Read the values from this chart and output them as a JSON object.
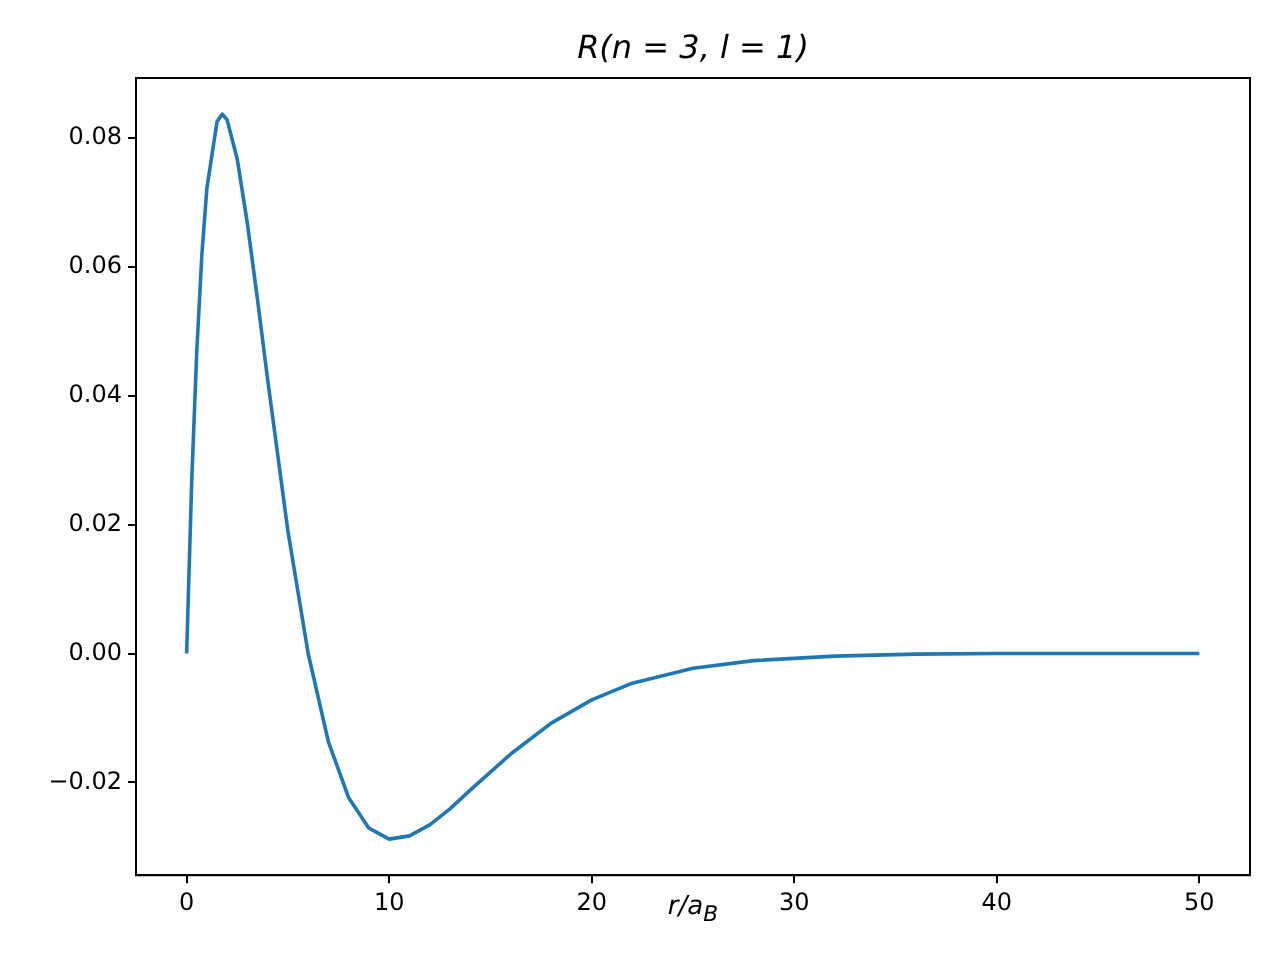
{
  "chart_data": {
    "type": "line",
    "title": "R(n = 3, l = 1)",
    "xlabel": "r/a$_{B}$",
    "x": [
      0,
      0.25,
      0.5,
      0.75,
      1,
      1.5,
      1.76,
      2,
      2.5,
      3,
      3.5,
      4,
      5,
      6,
      7,
      8,
      9,
      10,
      11,
      12,
      13,
      14,
      16,
      18,
      20,
      22,
      25,
      28,
      32,
      36,
      40,
      45,
      50
    ],
    "series": [
      {
        "color": "#1f77b4",
        "values": [
          0,
          0.0267,
          0.0469,
          0.0618,
          0.0722,
          0.0825,
          0.0837,
          0.0828,
          0.0767,
          0.0667,
          0.0549,
          0.0425,
          0.019,
          0,
          -0.0137,
          -0.0224,
          -0.0271,
          -0.0288,
          -0.0283,
          -0.0266,
          -0.0241,
          -0.0212,
          -0.0156,
          -0.0108,
          -0.0072,
          -0.0046,
          -0.0023,
          -0.0011,
          -0.0004,
          -0.0001,
          0,
          0,
          0
        ]
      }
    ],
    "xlim": [
      -2.5,
      52.5
    ],
    "xticks": [
      0,
      10,
      20,
      30,
      40,
      50
    ],
    "ylim": [
      -0.0344,
      0.0893
    ],
    "yticks": [
      {
        "value": -0.02,
        "label": "−0.02"
      },
      {
        "value": 0,
        "label": "0.00"
      },
      0.02,
      0.04,
      0.06,
      0.08
    ],
    "grid": false,
    "legend": false,
    "marker": "none",
    "line_style": "solid"
  }
}
